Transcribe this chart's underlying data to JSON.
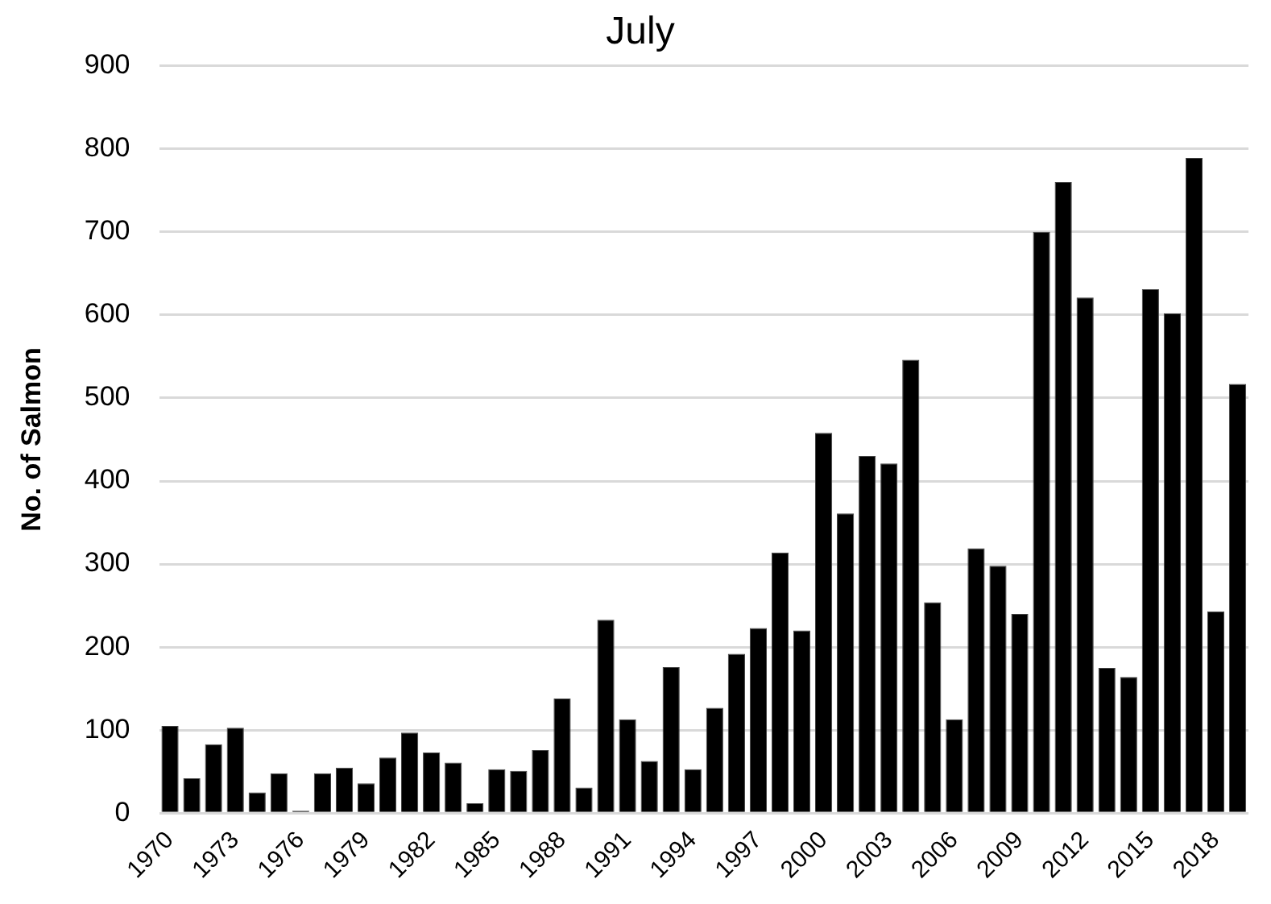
{
  "chart_data": {
    "type": "bar",
    "title": "July",
    "ylabel": "No. of Salmon",
    "categories": [
      "1970",
      null,
      null,
      "1973",
      null,
      null,
      "1976",
      null,
      null,
      "1979",
      null,
      null,
      "1982",
      null,
      null,
      "1985",
      null,
      null,
      "1988",
      null,
      null,
      "1991",
      null,
      null,
      "1994",
      null,
      null,
      "1997",
      null,
      null,
      "2000",
      null,
      null,
      "2003",
      null,
      null,
      "2006",
      null,
      null,
      "2009",
      null,
      null,
      "2012",
      null,
      null,
      "2015",
      null,
      null,
      "2018",
      null
    ],
    "values": [
      105,
      42,
      83,
      103,
      25,
      48,
      3,
      48,
      55,
      36,
      67,
      97,
      73,
      61,
      12,
      53,
      51,
      76,
      138,
      31,
      233,
      113,
      63,
      176,
      53,
      127,
      192,
      223,
      314,
      220,
      458,
      361,
      430,
      421,
      546,
      254,
      113,
      319,
      298,
      240,
      700,
      760,
      621,
      175,
      164,
      631,
      602,
      789,
      243,
      517
    ],
    "color": "#000000",
    "ylim": [
      0,
      900
    ],
    "yticks": [
      0,
      100,
      200,
      300,
      400,
      500,
      600,
      700,
      800,
      900
    ],
    "grid": "y",
    "legend": false
  }
}
